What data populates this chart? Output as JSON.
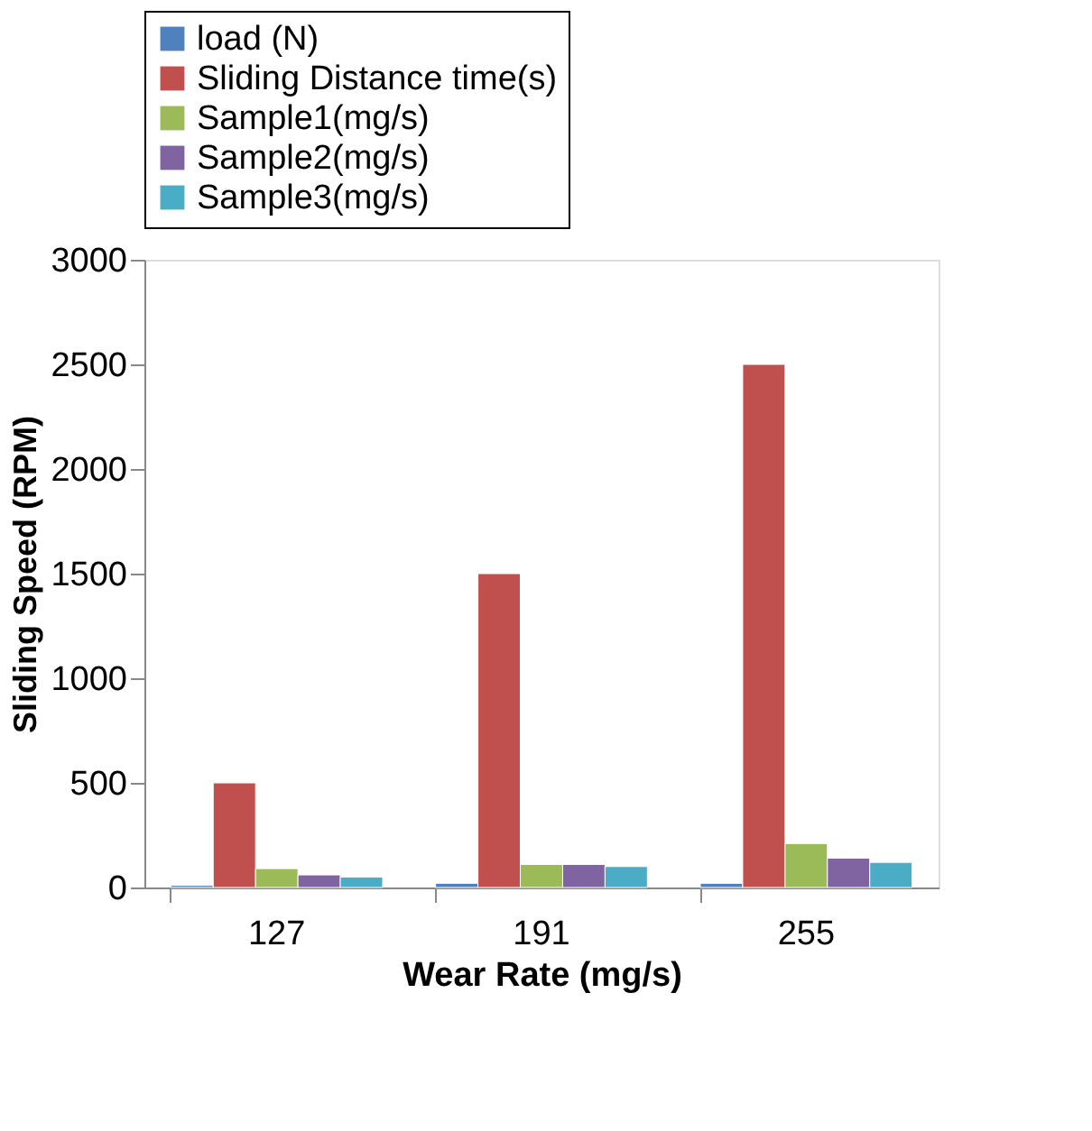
{
  "chart_data": {
    "type": "bar",
    "xlabel": "Wear Rate (mg/s)",
    "ylabel": "Sliding Speed (RPM)",
    "categories": [
      "127",
      "191",
      "255"
    ],
    "series": [
      {
        "name": "load (N)",
        "color": "#4f81bd",
        "values": [
          10,
          20,
          20
        ]
      },
      {
        "name": "Sliding Distance time(s)",
        "color": "#c0504d",
        "values": [
          500,
          1500,
          2500
        ]
      },
      {
        "name": "Sample1(mg/s)",
        "color": "#9bbb59",
        "values": [
          90,
          110,
          210
        ]
      },
      {
        "name": "Sample2(mg/s)",
        "color": "#8064a2",
        "values": [
          60,
          110,
          140
        ]
      },
      {
        "name": "Sample3(mg/s)",
        "color": "#4bacc6",
        "values": [
          50,
          100,
          120
        ]
      }
    ],
    "ylim": [
      0,
      3000
    ],
    "yticks": [
      0,
      500,
      1000,
      1500,
      2000,
      2500,
      3000
    ],
    "grid": false,
    "legend": "top"
  }
}
